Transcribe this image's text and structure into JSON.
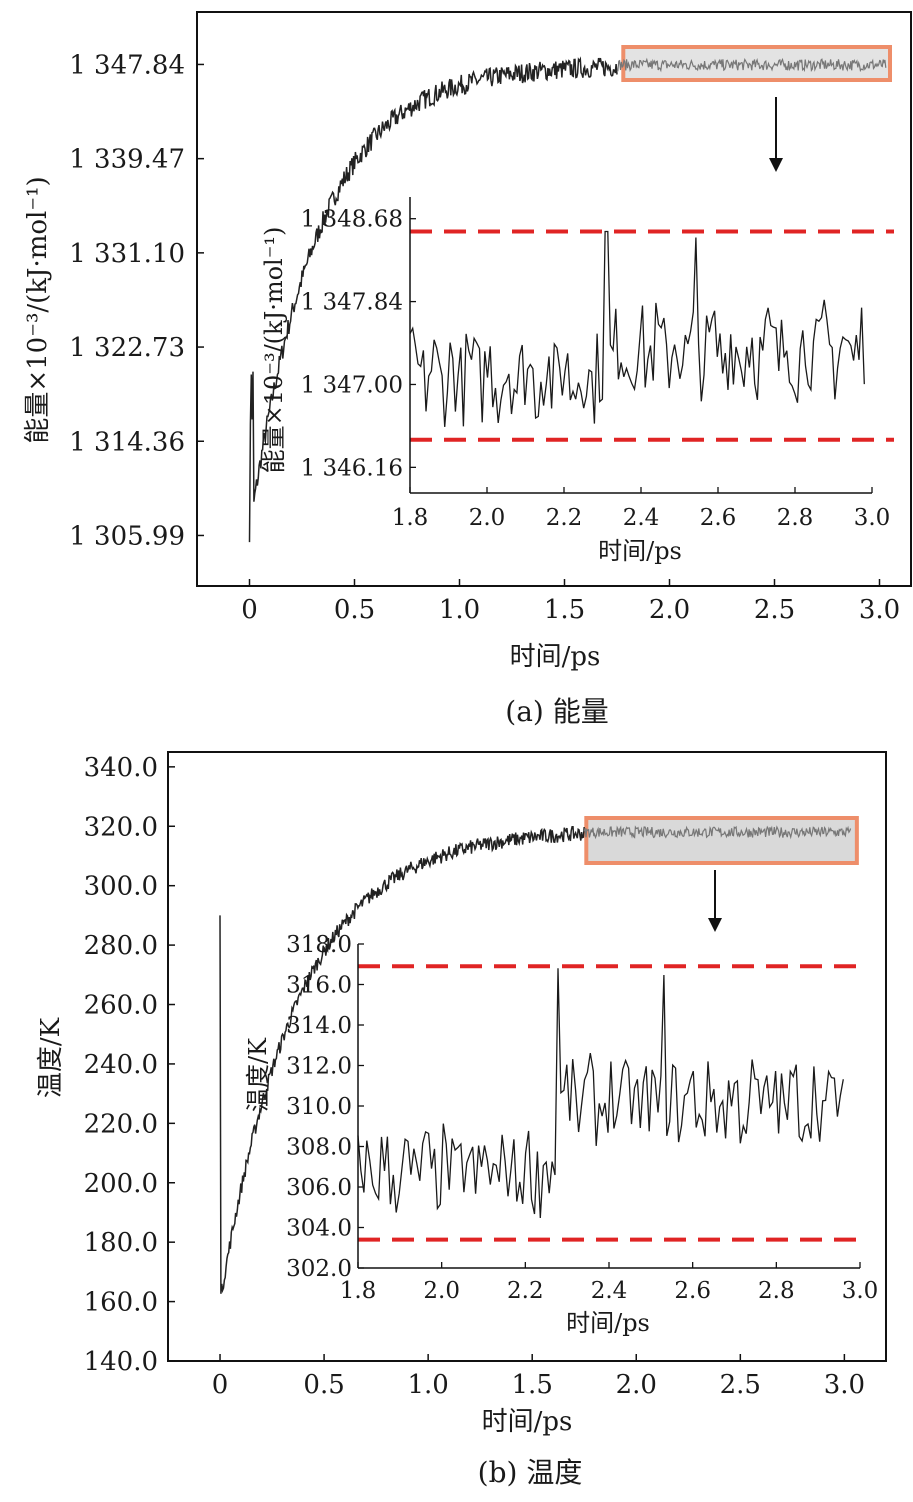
{
  "chart_data": [
    {
      "type": "line",
      "caption": "(a) 能量",
      "xlabel": "时间/ps",
      "ylabel": "能量×10⁻³/(kJ·mol⁻¹)",
      "xlim": [
        -0.25,
        3.15
      ],
      "ylim": [
        1301.5,
        1352.5
      ],
      "xticks": [
        "0",
        "0.5",
        "1.0",
        "1.5",
        "2.0",
        "2.5",
        "3.0"
      ],
      "xtick_values": [
        0,
        0.5,
        1.0,
        1.5,
        2.0,
        2.5,
        3.0
      ],
      "yticks": [
        "1 305.99",
        "1 314.36",
        "1 322.73",
        "1 331.10",
        "1 339.47",
        "1 347.84"
      ],
      "ytick_values": [
        1305.99,
        1314.36,
        1322.73,
        1331.1,
        1339.47,
        1347.84
      ],
      "series": [
        {
          "color": "#222222",
          "curve": {
            "t_start": 0,
            "t_end": 1.75,
            "y_start": 1306.3,
            "y_end": 1347.8,
            "tau": 0.32,
            "noise": 0.9,
            "dip_at": 0.01,
            "dip_to": 1318.0
          }
        },
        {
          "color": "#777777",
          "curve": {
            "t_start": 1.75,
            "t_end": 3.03,
            "y_level": 1347.8,
            "noise": 0.5
          }
        }
      ],
      "highlight_box": {
        "x": [
          1.78,
          3.05
        ],
        "fill": "#e3e3e3",
        "stroke": "#ee8e6a"
      },
      "inset": {
        "xlabel": "时间/ps",
        "ylabel": "能量×10⁻³/(kJ·mol⁻¹)",
        "xlim": [
          1.8,
          3.0
        ],
        "ylim": [
          1345.9,
          1348.9
        ],
        "xticks": [
          "1.8",
          "2.0",
          "2.2",
          "2.4",
          "2.6",
          "2.8",
          "3.0"
        ],
        "xtick_values": [
          1.8,
          2.0,
          2.2,
          2.4,
          2.6,
          2.8,
          3.0
        ],
        "yticks": [
          "1 346.16",
          "1 347.00",
          "1 347.84",
          "1 348.68"
        ],
        "ytick_values": [
          1346.16,
          1347.0,
          1347.84,
          1348.68
        ],
        "bounds": [
          1346.44,
          1348.55
        ],
        "bounds_color": "#e02424",
        "data": {
          "t_start": 1.8,
          "t_end": 2.98,
          "n": 170,
          "base_before": 1347.1,
          "base_after": 1347.35,
          "jump_at": 2.31,
          "amp": 0.45,
          "max": 1348.55,
          "min": 1346.45
        }
      }
    },
    {
      "type": "line",
      "caption": "(b) 温度",
      "xlabel": "时间/ps",
      "ylabel": "温度/K",
      "xlim": [
        -0.25,
        3.2
      ],
      "ylim": [
        140.0,
        345.0
      ],
      "xticks": [
        "0",
        "0.5",
        "1.0",
        "1.5",
        "2.0",
        "2.5",
        "3.0"
      ],
      "xtick_values": [
        0,
        0.5,
        1.0,
        1.5,
        2.0,
        2.5,
        3.0
      ],
      "yticks": [
        "140.0",
        "160.0",
        "180.0",
        "200.0",
        "220.0",
        "240.0",
        "260.0",
        "280.0",
        "300.0",
        "320.0",
        "340.0"
      ],
      "ytick_values": [
        140,
        160,
        180,
        200,
        220,
        240,
        260,
        280,
        300,
        320,
        340
      ],
      "series": [
        {
          "color": "#222222",
          "curve": {
            "t_start": 0,
            "t_end": 1.75,
            "y_start": 160.0,
            "y_end": 319.0,
            "tau": 0.37,
            "noise": 2.5,
            "spike_at": 0.0,
            "spike_to": 290.0
          }
        },
        {
          "color": "#777777",
          "curve": {
            "t_start": 1.75,
            "t_end": 3.03,
            "y_level": 318.0,
            "noise": 1.8
          }
        }
      ],
      "highlight_box": {
        "x": [
          1.76,
          3.06
        ],
        "fill": "#d9d9d9",
        "stroke": "#ee8e6a"
      },
      "inset": {
        "xlabel": "时间/ps",
        "ylabel": "温度/K",
        "xlim": [
          1.8,
          3.0
        ],
        "ylim": [
          302.0,
          318.0
        ],
        "xticks": [
          "1.8",
          "2.0",
          "2.2",
          "2.4",
          "2.6",
          "2.8",
          "3.0"
        ],
        "xtick_values": [
          1.8,
          2.0,
          2.2,
          2.4,
          2.6,
          2.8,
          3.0
        ],
        "yticks": [
          "302.0",
          "304.0",
          "306.0",
          "308.0",
          "310.0",
          "312.0",
          "314.0",
          "316.0",
          "318.0"
        ],
        "ytick_values": [
          302,
          304,
          306,
          308,
          310,
          312,
          314,
          316,
          318
        ],
        "bounds": [
          303.4,
          316.9
        ],
        "bounds_color": "#e02424",
        "data": {
          "t_start": 1.8,
          "t_end": 2.96,
          "n": 165,
          "base_before": 306.8,
          "base_after": 310.2,
          "jump_at": 2.28,
          "amp": 2.0,
          "max": 316.8,
          "min": 303.4
        }
      }
    }
  ]
}
